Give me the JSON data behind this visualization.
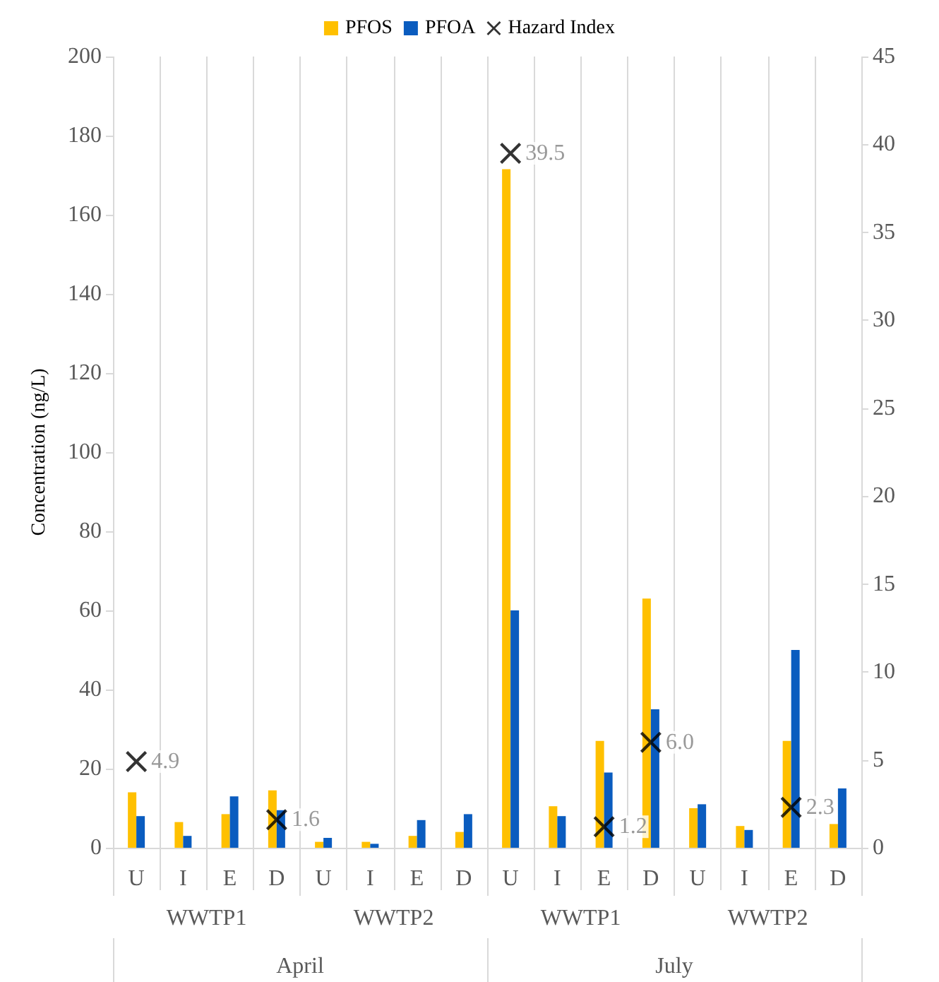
{
  "chart_data": {
    "type": "bar",
    "ylabel": "Concentration (ng/L)",
    "categories": [
      "U",
      "I",
      "E",
      "D",
      "U",
      "I",
      "E",
      "D",
      "U",
      "I",
      "E",
      "D",
      "U",
      "I",
      "E",
      "D"
    ],
    "series": [
      {
        "name": "PFOS",
        "color": "#ffc000",
        "values": [
          14,
          6.5,
          8.5,
          14.5,
          1.5,
          1.5,
          3,
          4,
          171.5,
          10.5,
          27,
          63,
          10,
          5.5,
          27,
          6
        ]
      },
      {
        "name": "PFOA",
        "color": "#0a5cbf",
        "values": [
          8,
          3,
          13,
          9.5,
          2.5,
          1,
          7,
          8.5,
          60,
          8,
          19,
          35,
          11,
          4.5,
          50,
          15
        ]
      },
      {
        "name": "Hazard Index",
        "type": "scatter",
        "axis": "y2",
        "marker": "cross",
        "color": "#000000",
        "values": [
          4.9,
          null,
          null,
          1.6,
          null,
          null,
          null,
          null,
          39.5,
          null,
          1.2,
          6.0,
          null,
          null,
          2.3,
          null
        ],
        "value_labels": [
          "4.9",
          null,
          null,
          "1.6",
          null,
          null,
          null,
          null,
          "39.5",
          null,
          "1.2",
          "6.0",
          null,
          null,
          "2.3",
          null
        ]
      }
    ],
    "ylim": [
      0,
      200
    ],
    "yticks": [
      0,
      20,
      40,
      60,
      80,
      100,
      120,
      140,
      160,
      180,
      200
    ],
    "y2lim": [
      0,
      45
    ],
    "y2ticks": [
      0,
      5,
      10,
      15,
      20,
      25,
      30,
      35,
      40,
      45
    ],
    "grid": "x",
    "legend": "top",
    "annotations": [
      "WWTP1",
      "WWTP2",
      "WWTP1",
      "WWTP2",
      "April",
      "July"
    ]
  }
}
